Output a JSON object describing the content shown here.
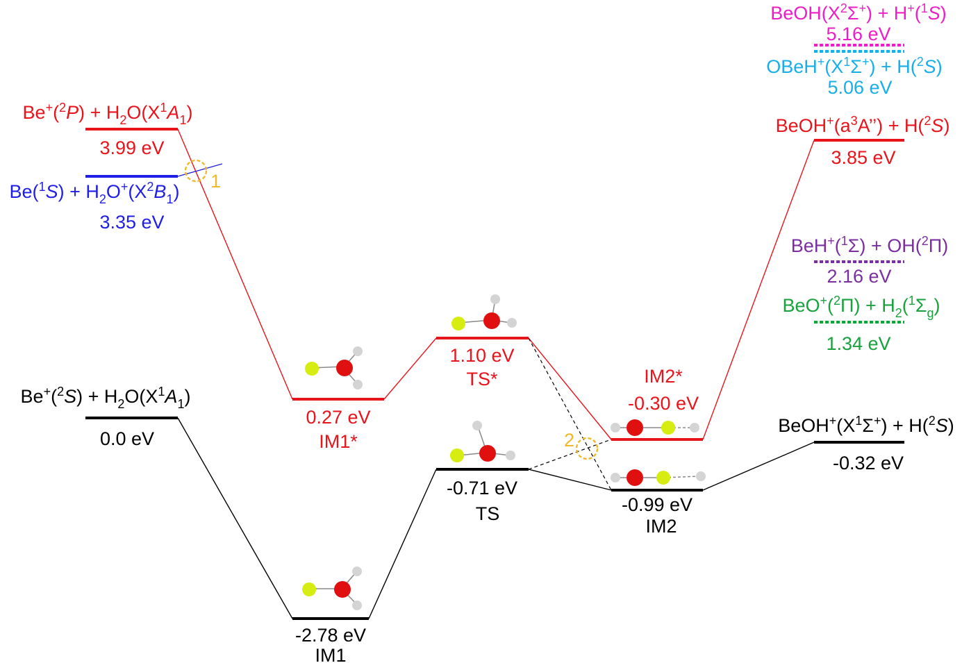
{
  "colors": {
    "ground": "#000000",
    "excited": "#e8141b",
    "be_h2o_cation": "#1e1ee6",
    "beoh_h_cation": "#ec1ec8",
    "obeh_h": "#18aeea",
    "beh_oh": "#7a2ea0",
    "beo_h2": "#18a23c",
    "crossing": "#f0b82a",
    "be_atom": "#d7ec10",
    "o_atom": "#e01010",
    "h_atom": "#d4d4d4"
  },
  "icons": {
    "atom_be": "yellow-green-sphere",
    "atom_o": "red-sphere",
    "atom_h": "white-sphere",
    "crossing_marker": "dashed-circle"
  },
  "levels": {
    "be_plus_2p": {
      "label_parts": [
        "Be",
        "+",
        "(",
        "2",
        "P",
        ") + H",
        "2",
        "O(X",
        "1",
        "A",
        "1",
        ")"
      ],
      "energy": "3.99 eV",
      "energy_value": 3.99
    },
    "be_1s_h2o_plus": {
      "label_parts": [
        "Be(",
        "1",
        "S",
        ") + H",
        "2",
        "O",
        "+",
        "(X",
        "2",
        "B",
        "1",
        ")"
      ],
      "energy": "3.35 eV",
      "energy_value": 3.35
    },
    "be_plus_2s": {
      "label_parts": [
        "Be",
        "+",
        "(",
        "2",
        "S",
        ") + H",
        "2",
        "O(X",
        "1",
        "A",
        "1",
        ")"
      ],
      "energy": "0.0 eV",
      "energy_value": 0.0
    },
    "im1_star": {
      "energy": "0.27 eV",
      "name": "IM1*",
      "energy_value": 0.27
    },
    "ts_star": {
      "energy": "1.10 eV",
      "name": "TS*",
      "energy_value": 1.1
    },
    "im2_star": {
      "name": "IM2*",
      "energy": "-0.30 eV",
      "energy_value": -0.3
    },
    "im1": {
      "energy": "-2.78 eV",
      "name": "IM1",
      "energy_value": -2.78
    },
    "ts": {
      "energy": "-0.71 eV",
      "name": "TS",
      "energy_value": -0.71
    },
    "im2": {
      "energy": "-0.99 eV",
      "name": "IM2",
      "energy_value": -0.99
    },
    "beoh_plus_x": {
      "label_parts": [
        "BeOH",
        "+",
        "(X",
        "1",
        "Σ",
        "+",
        ") + H(",
        "2",
        "S",
        ")"
      ],
      "energy": "-0.32 eV",
      "energy_value": -0.32
    },
    "beoh_plus_a": {
      "label_parts": [
        "BeOH",
        "+",
        "(a",
        "3",
        "A’’) + H(",
        "2",
        "S",
        ")"
      ],
      "energy": "3.85 eV",
      "energy_value": 3.85
    },
    "beoh_h_plus": {
      "label_parts": [
        "BeOH(X",
        "2",
        "Σ",
        "+",
        ") + H",
        "+",
        "(",
        "1",
        "S",
        ")"
      ],
      "energy": "5.16 eV",
      "energy_value": 5.16
    },
    "obeh_plus": {
      "label_parts": [
        "OBeH",
        "+",
        "(X",
        "1",
        "Σ",
        "+",
        ") + H(",
        "2",
        "S",
        ")"
      ],
      "energy": "5.06 eV",
      "energy_value": 5.06
    },
    "beh_plus": {
      "label_parts": [
        "BeH",
        "+",
        "(",
        "1",
        "Σ) + OH(",
        "2",
        "Π)"
      ],
      "energy": "2.16 eV",
      "energy_value": 2.16
    },
    "beo_plus": {
      "label_parts": [
        "BeO",
        "+",
        "(",
        "2",
        "Π) + H",
        "2",
        "(",
        "1",
        "Σ",
        "g",
        ")"
      ],
      "energy": "1.34 eV",
      "energy_value": 1.34
    }
  },
  "crossings": {
    "c1": "1",
    "c2": "2"
  }
}
